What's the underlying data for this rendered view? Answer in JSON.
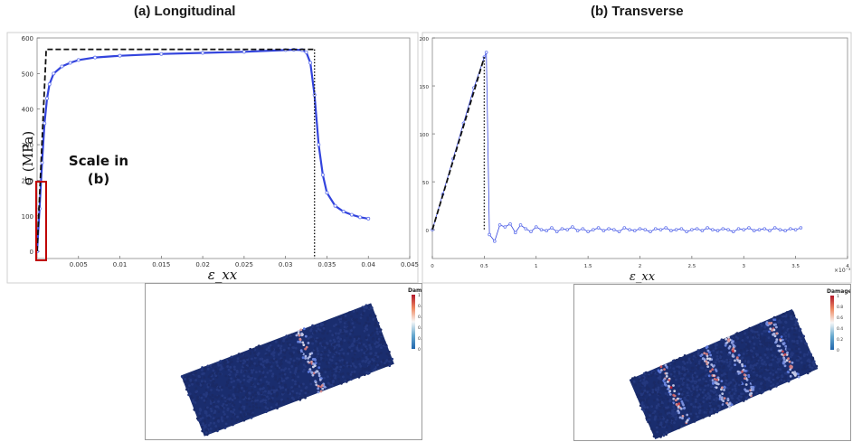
{
  "titles": {
    "left": "(a) Longitudinal",
    "right": "(b) Transverse"
  },
  "annotation": {
    "line1": "Scale in",
    "line2": "(b)"
  },
  "colors": {
    "curve": "#3344dd",
    "curve_light": "#6677ee",
    "dashed": "#111111",
    "highlight_box": "#c00000",
    "particles": "#1a2d6e",
    "damage_high": "#b2182b"
  },
  "chart_data": [
    {
      "type": "line",
      "title": "(a) Longitudinal",
      "xlabel": "ε_xx",
      "ylabel": "σ (MPa)",
      "xlim": [
        0,
        0.045
      ],
      "ylim": [
        -20,
        600
      ],
      "x_ticks": [
        "0.005",
        "0.01",
        "0.015",
        "0.02",
        "0.025",
        "0.03",
        "0.035",
        "0.04",
        "0.045"
      ],
      "y_ticks": [
        "0",
        "100",
        "200",
        "300",
        "400",
        "500",
        "600"
      ],
      "series": [
        {
          "style": "solid-markers",
          "x": [
            0,
            0.0003,
            0.0006,
            0.0009,
            0.0012,
            0.0015,
            0.002,
            0.003,
            0.004,
            0.005,
            0.007,
            0.01,
            0.015,
            0.02,
            0.025,
            0.03,
            0.031,
            0.032,
            0.0325,
            0.033,
            0.0335,
            0.034,
            0.0345,
            0.035,
            0.036,
            0.037,
            0.038,
            0.039,
            0.04
          ],
          "y": [
            0,
            120,
            250,
            360,
            430,
            470,
            500,
            520,
            530,
            538,
            545,
            550,
            555,
            558,
            561,
            566,
            567,
            566,
            560,
            530,
            440,
            300,
            215,
            165,
            128,
            112,
            103,
            96,
            92
          ]
        },
        {
          "style": "dashed",
          "x": [
            0,
            0.0011,
            0.0335
          ],
          "y": [
            0,
            568,
            568
          ]
        },
        {
          "style": "dotted",
          "x": [
            0.0335,
            0.0335
          ],
          "y": [
            568,
            -20
          ]
        }
      ]
    },
    {
      "type": "line",
      "title": "(b) Transverse",
      "xlabel": "ε_xx",
      "ylabel": "",
      "xlim": [
        0,
        4
      ],
      "ylim": [
        -30,
        200
      ],
      "x_multiplier": "×10⁻³",
      "x_ticks": [
        "0",
        "0.5",
        "1",
        "1.5",
        "2",
        "2.5",
        "3",
        "3.5",
        "4"
      ],
      "y_ticks": [
        "0",
        "50",
        "100",
        "150",
        "200"
      ],
      "series": [
        {
          "style": "solid-markers",
          "x": [
            0,
            0.1,
            0.2,
            0.3,
            0.4,
            0.5,
            0.52,
            0.55,
            0.6,
            0.65,
            0.7,
            0.75,
            0.8,
            0.85,
            0.9,
            0.95,
            1.0,
            1.05,
            1.1,
            1.15,
            1.2,
            1.25,
            1.3,
            1.35,
            1.4,
            1.45,
            1.5,
            1.55,
            1.6,
            1.65,
            1.7,
            1.75,
            1.8,
            1.85,
            1.9,
            1.95,
            2.0,
            2.05,
            2.1,
            2.15,
            2.2,
            2.25,
            2.3,
            2.35,
            2.4,
            2.45,
            2.5,
            2.55,
            2.6,
            2.65,
            2.7,
            2.75,
            2.8,
            2.85,
            2.9,
            2.95,
            3.0,
            3.05,
            3.1,
            3.15,
            3.2,
            3.25,
            3.3,
            3.35,
            3.4,
            3.45,
            3.5,
            3.55
          ],
          "y": [
            0,
            37,
            74,
            111,
            148,
            180,
            185,
            -5,
            -12,
            5,
            3,
            6,
            -3,
            5,
            1,
            -2,
            3,
            0,
            -1,
            2,
            -2,
            1,
            0,
            3,
            -1,
            1,
            -2,
            0,
            2,
            -1,
            1,
            0,
            -2,
            2,
            0,
            -1,
            1,
            0,
            -2,
            1,
            0,
            2,
            -1,
            0,
            1,
            -2,
            0,
            1,
            -1,
            2,
            0,
            -1,
            1,
            0,
            -2,
            1,
            0,
            2,
            -1,
            0,
            1,
            -1,
            2,
            0,
            -1,
            1,
            0,
            2
          ]
        },
        {
          "style": "dashed",
          "x": [
            0,
            0.5
          ],
          "y": [
            0,
            180
          ]
        },
        {
          "style": "dotted",
          "x": [
            0.5,
            0.5
          ],
          "y": [
            180,
            0
          ]
        }
      ]
    }
  ],
  "simulations": [
    {
      "legend_title": "Damage",
      "legend_ticks": [
        "1",
        "0.8",
        "0.6",
        "0.4",
        "0.2",
        "0"
      ],
      "damage_bands": [
        0.62
      ]
    },
    {
      "legend_title": "Damage",
      "legend_ticks": [
        "1",
        "0.8",
        "0.6",
        "0.4",
        "0.2",
        "0"
      ],
      "damage_bands": [
        0.2,
        0.45,
        0.6,
        0.86
      ]
    }
  ]
}
